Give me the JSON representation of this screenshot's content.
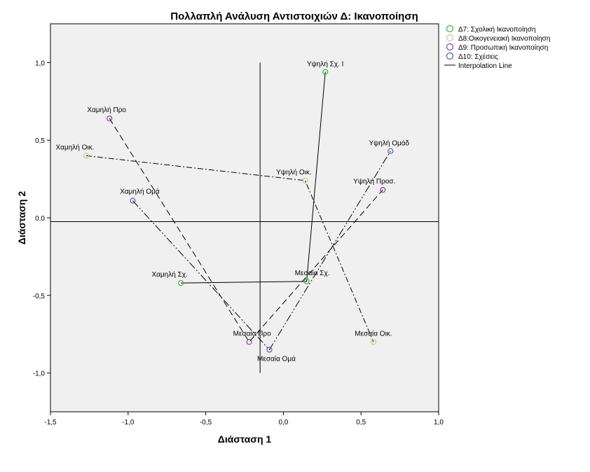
{
  "chart_data": {
    "type": "scatter",
    "title": "Πολλαπλή Ανάλυση Αντιστοιχιών Δ: Ικανοποίηση",
    "xlabel": "Διάσταση 1",
    "ylabel": "Διάσταση 2",
    "xlim": [
      -1.5,
      1.0
    ],
    "ylim": [
      -1.25,
      1.25
    ],
    "x_ticks": [
      "-1,5",
      "-1,0",
      "-0,5",
      "0,0",
      "0,5",
      "1,0"
    ],
    "x_tick_values": [
      -1.5,
      -1.0,
      -0.5,
      0.0,
      0.5,
      1.0
    ],
    "y_ticks": [
      "1,0",
      "0,5",
      "0,0",
      "-0,5",
      "-1,0"
    ],
    "y_tick_values": [
      1.0,
      0.5,
      0.0,
      -0.5,
      -1.0
    ],
    "reference_lines": {
      "x": -0.15,
      "y": -0.025
    },
    "legend_position": "top-right",
    "interpolation_label": "Interpolation Line",
    "series": [
      {
        "name": "Δ7: Σχολική Ικανοποίηση",
        "color": "#3cb44b",
        "dash": "",
        "points": [
          {
            "label": "Χαμηλή Σχ.",
            "x": -0.66,
            "y": -0.42
          },
          {
            "label": "Μεσαία Σχ.",
            "x": 0.15,
            "y": -0.41
          },
          {
            "label": "Υψηλή Σχ. Ι",
            "x": 0.27,
            "y": 0.94
          }
        ]
      },
      {
        "name": "Δ8:Οικογενειακή Ικανοποίηση",
        "color": "#c8c88a",
        "dash": "8,3,2,3",
        "points": [
          {
            "label": "Χαμηλή Οικ.",
            "x": -1.27,
            "y": 0.4
          },
          {
            "label": "Υψηλή Οικ.",
            "x": 0.14,
            "y": 0.24
          },
          {
            "label": "Μεσαία Οικ.",
            "x": 0.58,
            "y": -0.8
          }
        ]
      },
      {
        "name": "Δ9: Προσωπική Ικανοποίηση",
        "color": "#8e3c9e",
        "dash": "9,5",
        "points": [
          {
            "label": "Χαμηλή Προ",
            "x": -1.12,
            "y": 0.64
          },
          {
            "label": "Μεσαία Προ",
            "x": -0.22,
            "y": -0.8
          },
          {
            "label": "Υψηλή Προσ.",
            "x": 0.64,
            "y": 0.18
          }
        ]
      },
      {
        "name": "Δ10: Σχέσεις",
        "color": "#4a5fb5",
        "dash": "11,3,2,3,2,3",
        "points": [
          {
            "label": "Χαμηλή Ομά",
            "x": -0.97,
            "y": 0.11
          },
          {
            "label": "Μεσαία Ομά",
            "x": -0.09,
            "y": -0.85
          },
          {
            "label": "Υψηλή Ομάδ",
            "x": 0.69,
            "y": 0.43
          }
        ]
      }
    ]
  }
}
